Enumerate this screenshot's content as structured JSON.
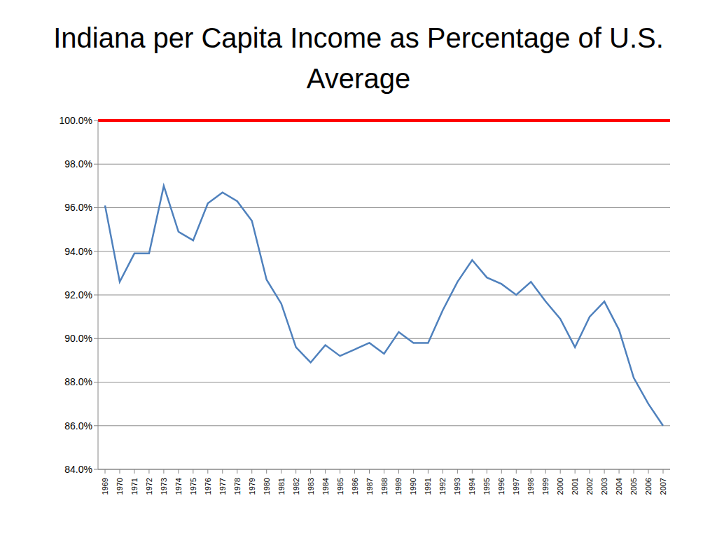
{
  "chart_data": {
    "type": "line",
    "title": "Indiana per Capita Income as Percentage of U.S. Average",
    "categories": [
      "1969",
      "1970",
      "1971",
      "1972",
      "1973",
      "1974",
      "1975",
      "1976",
      "1977",
      "1978",
      "1979",
      "1980",
      "1981",
      "1982",
      "1983",
      "1984",
      "1985",
      "1986",
      "1987",
      "1988",
      "1989",
      "1990",
      "1991",
      "1992",
      "1993",
      "1994",
      "1995",
      "1996",
      "1997",
      "1998",
      "1999",
      "2000",
      "2001",
      "2002",
      "2003",
      "2004",
      "2005",
      "2006",
      "2007"
    ],
    "values": [
      96.1,
      92.6,
      93.9,
      93.9,
      97.0,
      94.9,
      94.5,
      96.2,
      96.7,
      96.3,
      95.4,
      92.7,
      91.6,
      89.6,
      88.9,
      89.7,
      89.2,
      89.5,
      89.8,
      89.3,
      90.3,
      89.8,
      89.8,
      91.3,
      92.6,
      93.6,
      92.8,
      92.5,
      92.0,
      92.6,
      91.7,
      90.9,
      89.6,
      91.0,
      91.7,
      90.4,
      88.2,
      87.0,
      86.0
    ],
    "color": "#4f81bd",
    "reference_line": {
      "value": 100,
      "color": "#ff0000"
    },
    "ylim": [
      84,
      100
    ],
    "yticks": [
      {
        "value": 84,
        "label": "84.0%"
      },
      {
        "value": 86,
        "label": "86.0%"
      },
      {
        "value": 88,
        "label": "88.0%"
      },
      {
        "value": 90,
        "label": "90.0%"
      },
      {
        "value": 92,
        "label": "92.0%"
      },
      {
        "value": 94,
        "label": "94.0%"
      },
      {
        "value": 96,
        "label": "96.0%"
      },
      {
        "value": 98,
        "label": "98.0%"
      },
      {
        "value": 100,
        "label": "100.0%"
      }
    ],
    "grid": true
  }
}
